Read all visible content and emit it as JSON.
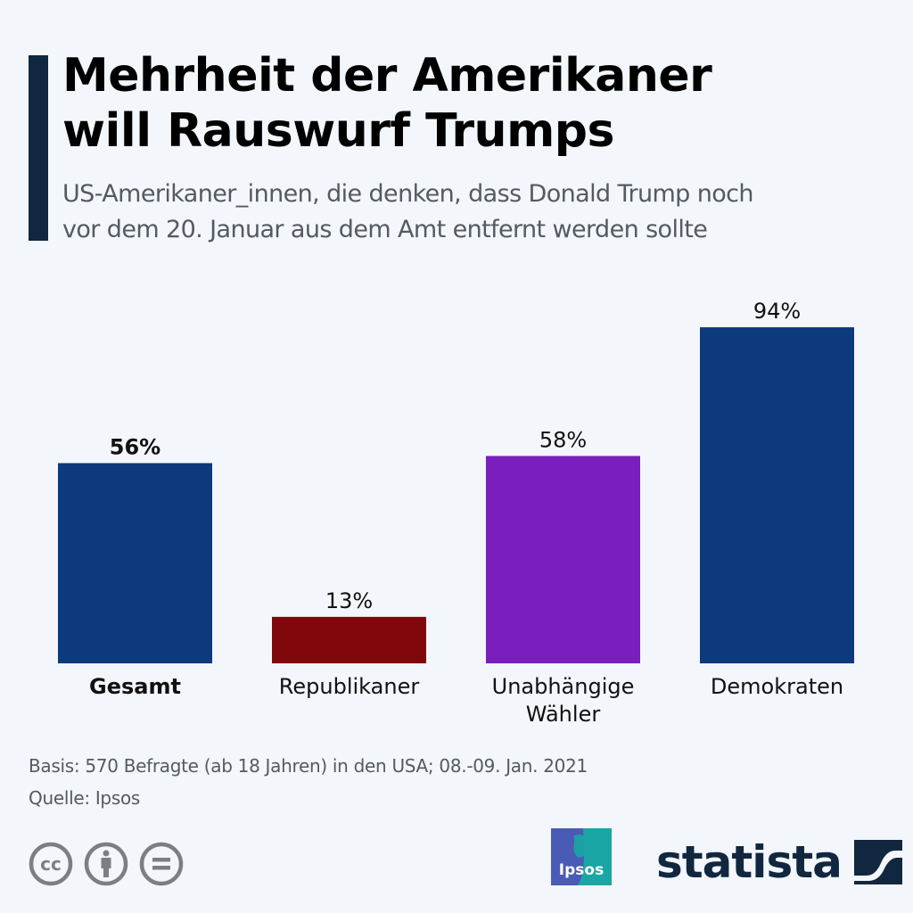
{
  "header": {
    "title_line1": "Mehrheit der Amerikaner",
    "title_line2": "will Rauswurf Trumps",
    "subtitle_line1": "US-Amerikaner_innen, die denken, dass Donald Trump noch",
    "subtitle_line2": "vor dem 20. Januar aus dem Amt entfernt werden sollte"
  },
  "chart_data": {
    "type": "bar",
    "title": "Mehrheit der Amerikaner will Rauswurf Trumps",
    "subtitle": "US-Amerikaner_innen, die denken, dass Donald Trump noch vor dem 20. Januar aus dem Amt entfernt werden sollte",
    "xlabel": "",
    "ylabel": "",
    "ylim": [
      0,
      100
    ],
    "grid": false,
    "unit": "%",
    "categories": [
      {
        "label_lines": [
          "Gesamt"
        ],
        "bold": true
      },
      {
        "label_lines": [
          "Republikaner"
        ],
        "bold": false
      },
      {
        "label_lines": [
          "Unabhängige",
          "Wähler"
        ],
        "bold": false
      },
      {
        "label_lines": [
          "Demokraten"
        ],
        "bold": false
      }
    ],
    "category_names": [
      "Gesamt",
      "Republikaner",
      "Unabhängige Wähler",
      "Demokraten"
    ],
    "values": [
      56,
      13,
      58,
      94
    ],
    "value_labels": [
      "56%",
      "13%",
      "58%",
      "94%"
    ],
    "colors": [
      "#0c3a7d",
      "#80080c",
      "#7a1fbe",
      "#0c3a7d"
    ]
  },
  "footer": {
    "basis": "Basis: 570 Befragte (ab 18 Jahren) in den USA; 08.-09. Jan. 2021",
    "source": "Quelle: Ipsos",
    "license_icons": [
      "creative-commons-icon",
      "attribution-icon",
      "no-derivatives-icon"
    ],
    "ipsos_logo_text": "Ipsos",
    "brand": "statista"
  },
  "colors": {
    "background": "#f3f6fa",
    "accent": "#11273f",
    "subtitle_text": "#555a60"
  }
}
